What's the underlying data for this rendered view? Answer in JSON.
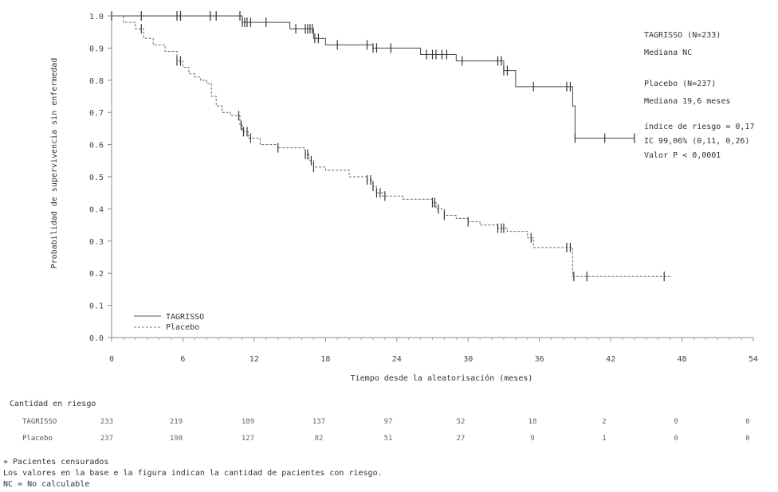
{
  "chart_data": {
    "type": "line",
    "xlabel": "Tiempo desde la aleatorisación (meses)",
    "ylabel": "Probabilidad de supervivencia sin enfermedad",
    "xlim": [
      0,
      54
    ],
    "ylim": [
      0,
      1.0
    ],
    "x_ticks": [
      "0",
      "6",
      "12",
      "18",
      "24",
      "30",
      "36",
      "42",
      "48",
      "54"
    ],
    "y_ticks": [
      "0.0",
      "0.1",
      "0.2",
      "0.3",
      "0.4",
      "0.5",
      "0.6",
      "0.7",
      "0.8",
      "0.9",
      "1.0"
    ],
    "grid": false,
    "legend": "bottom-left",
    "series": [
      {
        "name": "TAGRISSO",
        "style": "solid",
        "steps": [
          [
            0,
            1.0
          ],
          [
            11,
            1.0
          ],
          [
            11,
            0.98
          ],
          [
            15,
            0.98
          ],
          [
            15,
            0.96
          ],
          [
            17,
            0.96
          ],
          [
            17,
            0.93
          ],
          [
            18,
            0.93
          ],
          [
            18,
            0.91
          ],
          [
            22,
            0.91
          ],
          [
            22,
            0.9
          ],
          [
            26,
            0.9
          ],
          [
            26,
            0.88
          ],
          [
            29,
            0.88
          ],
          [
            29,
            0.86
          ],
          [
            33,
            0.86
          ],
          [
            33,
            0.83
          ],
          [
            34,
            0.83
          ],
          [
            34,
            0.78
          ],
          [
            38.8,
            0.78
          ],
          [
            38.8,
            0.72
          ],
          [
            39,
            0.72
          ],
          [
            39,
            0.62
          ],
          [
            44,
            0.62
          ]
        ],
        "censor_x": [
          0,
          2.5,
          5.5,
          5.8,
          8.3,
          8.8,
          10.8,
          11.0,
          11.2,
          11.4,
          11.7,
          13.0,
          15.5,
          16.3,
          16.5,
          16.7,
          16.9,
          17.1,
          17.4,
          19.0,
          21.5,
          22.0,
          22.3,
          23.5,
          26.5,
          27.0,
          27.3,
          27.8,
          28.2,
          29.5,
          32.5,
          32.8,
          33.0,
          33.3,
          35.5,
          38.3,
          38.6,
          39.0,
          41.5,
          44.0
        ],
        "censor_x_note": "censored marks"
      },
      {
        "name": "Placebo",
        "style": "dashed",
        "steps": [
          [
            0,
            1.0
          ],
          [
            1,
            0.98
          ],
          [
            2,
            0.96
          ],
          [
            2.7,
            0.93
          ],
          [
            3.5,
            0.91
          ],
          [
            4.5,
            0.89
          ],
          [
            5.5,
            0.86
          ],
          [
            6,
            0.84
          ],
          [
            6.5,
            0.82
          ],
          [
            7,
            0.81
          ],
          [
            7.5,
            0.8
          ],
          [
            8,
            0.79
          ],
          [
            8.4,
            0.75
          ],
          [
            8.8,
            0.72
          ],
          [
            9.3,
            0.7
          ],
          [
            10,
            0.69
          ],
          [
            10.8,
            0.66
          ],
          [
            11,
            0.64
          ],
          [
            11.5,
            0.62
          ],
          [
            12.5,
            0.6
          ],
          [
            14,
            0.59
          ],
          [
            15,
            0.59
          ],
          [
            16.3,
            0.57
          ],
          [
            16.6,
            0.55
          ],
          [
            17,
            0.53
          ],
          [
            18,
            0.52
          ],
          [
            20,
            0.5
          ],
          [
            21.5,
            0.49
          ],
          [
            22,
            0.47
          ],
          [
            22.3,
            0.45
          ],
          [
            22.8,
            0.44
          ],
          [
            24,
            0.44
          ],
          [
            24.5,
            0.43
          ],
          [
            27,
            0.42
          ],
          [
            27.3,
            0.4
          ],
          [
            28,
            0.38
          ],
          [
            29,
            0.37
          ],
          [
            30,
            0.36
          ],
          [
            31,
            0.35
          ],
          [
            32.5,
            0.34
          ],
          [
            33.3,
            0.33
          ],
          [
            34,
            0.33
          ],
          [
            35,
            0.31
          ],
          [
            35.5,
            0.28
          ],
          [
            38.8,
            0.28
          ],
          [
            38.8,
            0.19
          ],
          [
            47,
            0.19
          ]
        ],
        "censor_x": [
          2.5,
          5.5,
          5.8,
          10.7,
          10.9,
          11.1,
          11.4,
          11.7,
          14.0,
          16.3,
          16.5,
          16.8,
          17.0,
          21.5,
          21.8,
          22.0,
          22.3,
          22.6,
          23.0,
          27.0,
          27.2,
          27.5,
          28.0,
          30.0,
          32.5,
          32.8,
          33.0,
          35.3,
          38.3,
          38.6,
          38.9,
          40.0,
          46.5
        ]
      }
    ],
    "annotations": [
      "TAGRISSO (N=233)",
      "Mediana NC",
      "Placebo (N=237)",
      "Mediana 19,6 meses",
      "índice de riesgo = 0,17",
      "IC 99,06% (0,11, 0,26)",
      "Valor P < 0,0001"
    ],
    "legend_entries": [
      "TAGRISSO",
      "Placebo"
    ]
  },
  "risk_table": {
    "title": "Cantidad en riesgo",
    "rows": [
      {
        "name": "TAGRISSO",
        "values": [
          "233",
          "219",
          "189",
          "137",
          "97",
          "52",
          "18",
          "2",
          "0",
          "0"
        ]
      },
      {
        "name": "Placebo",
        "values": [
          "237",
          "198",
          "127",
          "82",
          "51",
          "27",
          "9",
          "1",
          "0",
          "0"
        ]
      }
    ]
  },
  "footnotes": [
    "+ Pacientes censurados",
    "Los valores en la base e la figura indican la cantidad de pacientes con riesgo.",
    "NC = No calculable"
  ]
}
